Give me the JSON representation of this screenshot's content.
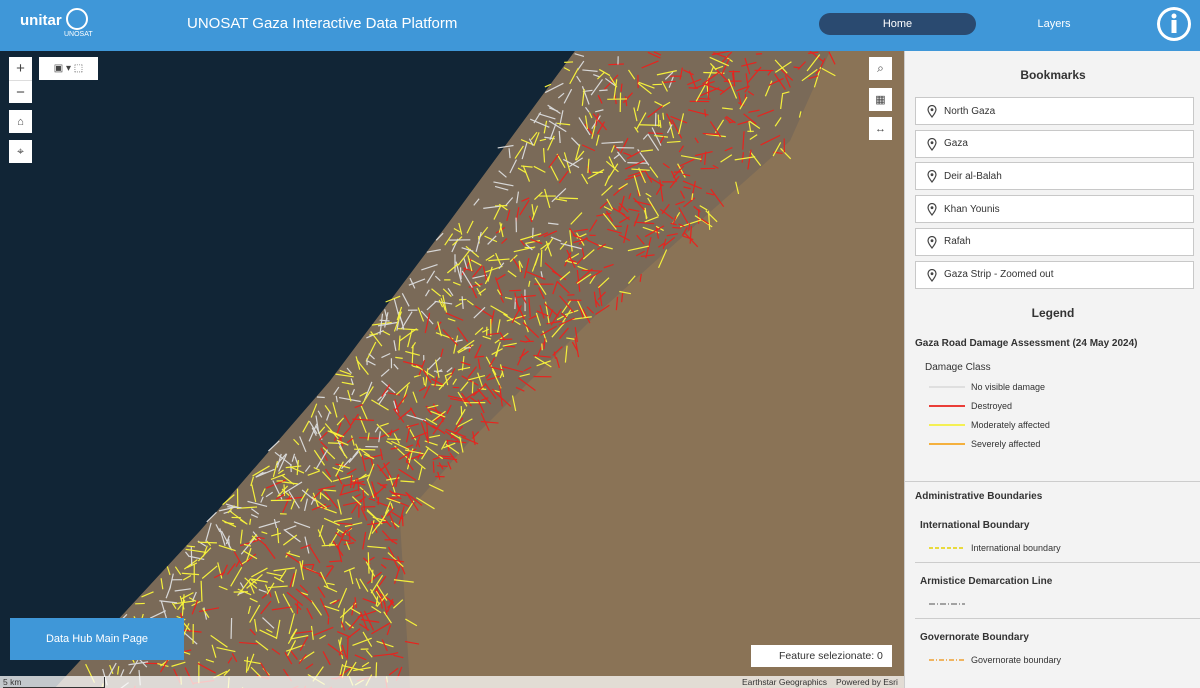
{
  "header": {
    "logo_primary": "unitar",
    "logo_secondary": "UNOSAT",
    "title": "UNOSAT Gaza Interactive Data Platform",
    "nav": [
      "Home",
      "Layers"
    ]
  },
  "map": {
    "zoom_in": "+",
    "zoom_out": "−",
    "scale": "5 km",
    "attribution": "Earthstar Geographics",
    "powered_by": "Powered by Esri",
    "feature_count": "Feature selezionate: 0",
    "data_hub_button": "Data Hub Main Page"
  },
  "bookmarks": {
    "title": "Bookmarks",
    "items": [
      "North Gaza",
      "Gaza",
      "Deir al-Balah",
      "Khan Younis",
      "Rafah",
      "Gaza Strip - Zoomed out"
    ]
  },
  "legend": {
    "title": "Legend",
    "layer_title": "Gaza Road Damage Assessment (24 May 2024)",
    "damage_class": "Damage Class",
    "damage_items": [
      {
        "label": "No visible damage",
        "color": "#dcdcdc"
      },
      {
        "label": "Destroyed",
        "color": "#e8231e"
      },
      {
        "label": "Moderately affected",
        "color": "#f5f03c"
      },
      {
        "label": "Severely affected",
        "color": "#f5a623"
      }
    ],
    "admin_title": "Administrative Boundaries",
    "groups": [
      {
        "title": "International Boundary",
        "item": "International boundary",
        "color": "#e6d200"
      },
      {
        "title": "Armistice Demarcation Line",
        "color": "#888888"
      },
      {
        "title": "Governorate Boundary",
        "item": "Governorate boundary",
        "color": "#f0a030"
      }
    ]
  }
}
